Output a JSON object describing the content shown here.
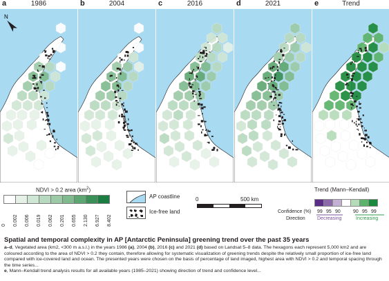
{
  "panels": [
    {
      "letter": "a",
      "year": "1986"
    },
    {
      "letter": "b",
      "year": "2004"
    },
    {
      "letter": "c",
      "year": "2016"
    },
    {
      "letter": "d",
      "year": "2021"
    },
    {
      "letter": "e",
      "year": "Trend"
    }
  ],
  "compass": {
    "north": "N"
  },
  "colors": {
    "ocean": "#a8daf2",
    "land": "#ffffff",
    "ndvi_scale": [
      "#ffffff",
      "#e5f1e7",
      "#cfe6d4",
      "#b7d9bf",
      "#9ccaa7",
      "#80bb8e",
      "#5fa772",
      "#3a9157",
      "#1c7d42"
    ],
    "trend_scale": [
      "#5b2d86",
      "#8c6aaa",
      "#c3b0d3",
      "#ffffff",
      "#b5dcb8",
      "#5cb36a",
      "#1b8a3c"
    ]
  },
  "legend": {
    "ndvi_title": "NDVI > 0.2 area (km",
    "ndvi_title_sup": "2",
    "ndvi_title_end": ")",
    "ndvi_labels": [
      "0",
      "0.002",
      "0.006",
      "0.019",
      "0.062",
      "0.201",
      "0.655",
      "2.130",
      "6.927",
      "8.402"
    ],
    "coastline_label": "AP coastline",
    "icefree_label": "Ice-free land",
    "scale_start": "0",
    "scale_end": "500 km",
    "trend_title": "Trend (Mann–Kendall)",
    "confidence_label": "Confidence (%)",
    "direction_label": "Direction",
    "confidence_values": [
      "99",
      "95",
      "90",
      "",
      "90",
      "95",
      "99"
    ],
    "decreasing_label": "Decreasing",
    "increasing_label": "Increasing",
    "decreasing_color": "#7a4fa0",
    "increasing_color": "#2f9a4a"
  },
  "caption": {
    "title": "Spatial and temporal complexity in AP [Antarctic Peninsula] greening trend over the past 35 years",
    "line1_a": "a–d",
    "line1_rest": ", Vegetated area (km2, <300 m a.s.l.) in the years 1986 ",
    "tag_a": "(a)",
    "t2004": ", 2004 ",
    "tag_b": "(b)",
    "t2016": ", 2016 ",
    "tag_c": "(c)",
    "t2021": " and 2021 ",
    "tag_d": "(d)",
    "line1_end": " based on Landsat 5–8 data. The hexagons each represent 5,000 km2 and are coloured according to the area of NDVI > 0.2 they contain, therefore allowing for systematic visualization of greening trends despite the relatively small proportion of ice-free land compared with ice-covered land and ocean. The presented years were chosen on the basis of percentage of land imaged, highest area with NDVI > 0.2 and temporal spacing through the time series...",
    "line2_e": "e",
    "line2_rest": ", Mann–Kendall trend analysis results for all available years (1985–2021) showing direction of trend and confidence level..."
  }
}
